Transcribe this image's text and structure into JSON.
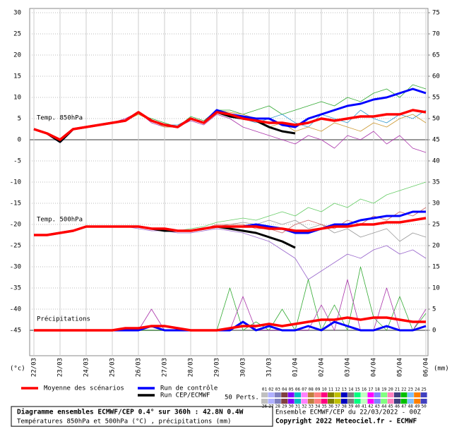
{
  "chart_data": {
    "type": "line",
    "categories": [
      "22/03",
      null,
      "23/03",
      null,
      "24/03",
      null,
      "25/03",
      null,
      "26/03",
      null,
      "27/03",
      null,
      "28/03",
      null,
      "29/03",
      null,
      "30/03",
      null,
      "31/03",
      null,
      "01/04",
      null,
      "02/04",
      null,
      "03/04",
      null,
      "04/04",
      null,
      "05/04",
      null,
      "06/04"
    ],
    "ylim": [
      -51,
      31
    ],
    "yticks": [
      30,
      25,
      20,
      15,
      10,
      5,
      0,
      -5,
      -10,
      -15,
      -20,
      -25,
      -30,
      -35,
      -40,
      -45
    ],
    "y2lim": [
      -6,
      76
    ],
    "y2ticks": [
      75,
      70,
      65,
      60,
      55,
      50,
      45,
      40,
      35,
      30,
      25,
      20,
      15,
      10,
      5,
      0
    ],
    "baselines": [
      0,
      -45
    ],
    "grid": true,
    "y_unit": "(°c)",
    "y2_unit": "(mm)",
    "annotations": [
      "Temp. 850hPa",
      "Temp. 500hPa",
      "Précipitations"
    ],
    "legend": [
      {
        "name": "Moyenne des scénarios",
        "color": "#ff0000"
      },
      {
        "name": "Run de contrôle",
        "color": "#0000ff"
      },
      {
        "name": "Run CEP/ECMWF",
        "color": "#000000"
      }
    ],
    "perts_label": "50 Perts.",
    "members": [
      {
        "label": "01",
        "color": "#c0c0c0"
      },
      {
        "label": "02",
        "color": "#b0b0ff"
      },
      {
        "label": "03",
        "color": "#8080c0"
      },
      {
        "label": "04",
        "color": "#804040"
      },
      {
        "label": "05",
        "color": "#8000ff"
      },
      {
        "label": "06",
        "color": "#00c0c0"
      },
      {
        "label": "07",
        "color": "#ff80ff"
      },
      {
        "label": "08",
        "color": "#c08040"
      },
      {
        "label": "09",
        "color": "#ff8080"
      },
      {
        "label": "10",
        "color": "#ff0080"
      },
      {
        "label": "11",
        "color": "#808000"
      },
      {
        "label": "12",
        "color": "#c0c000"
      },
      {
        "label": "13",
        "color": "#0000c0"
      },
      {
        "label": "14",
        "color": "#808080"
      },
      {
        "label": "15",
        "color": "#00ff80"
      },
      {
        "label": "16",
        "color": "#c0ffc0"
      },
      {
        "label": "17",
        "color": "#ff00ff"
      },
      {
        "label": "18",
        "color": "#8080ff"
      },
      {
        "label": "19",
        "color": "#80ff80"
      },
      {
        "label": "20",
        "color": "#ff80c0"
      },
      {
        "label": "21",
        "color": "#404080"
      },
      {
        "label": "22",
        "color": "#00c000"
      },
      {
        "label": "23",
        "color": "#80c0ff"
      },
      {
        "label": "24",
        "color": "#ff8000"
      },
      {
        "label": "25",
        "color": "#4040c0"
      },
      {
        "label": "26",
        "color": "#c0c0c0"
      },
      {
        "label": "27",
        "color": "#b0b0ff"
      },
      {
        "label": "28",
        "color": "#8080c0"
      },
      {
        "label": "29",
        "color": "#804040"
      },
      {
        "label": "30",
        "color": "#8000ff"
      },
      {
        "label": "31",
        "color": "#00c0c0"
      },
      {
        "label": "32",
        "color": "#ff80ff"
      },
      {
        "label": "33",
        "color": "#c08040"
      },
      {
        "label": "34",
        "color": "#ff8080"
      },
      {
        "label": "35",
        "color": "#ff0080"
      },
      {
        "label": "36",
        "color": "#808000"
      },
      {
        "label": "37",
        "color": "#c0c000"
      },
      {
        "label": "38",
        "color": "#0000c0"
      },
      {
        "label": "39",
        "color": "#808080"
      },
      {
        "label": "40",
        "color": "#00ff80"
      },
      {
        "label": "41",
        "color": "#c0ffc0"
      },
      {
        "label": "42",
        "color": "#ff00ff"
      },
      {
        "label": "43",
        "color": "#8080ff"
      },
      {
        "label": "44",
        "color": "#80ff80"
      },
      {
        "label": "45",
        "color": "#ff80c0"
      },
      {
        "label": "46",
        "color": "#404080"
      },
      {
        "label": "47",
        "color": "#00c000"
      },
      {
        "label": "48",
        "color": "#80c0ff"
      },
      {
        "label": "49",
        "color": "#ff8000"
      },
      {
        "label": "50",
        "color": "#4040c0"
      }
    ],
    "series": [
      {
        "color": "#33aa33",
        "values": [
          2.5,
          1.5,
          0,
          2.5,
          3,
          3.5,
          4,
          4.5,
          6,
          5,
          4,
          3,
          5.5,
          4.5,
          7,
          7,
          6,
          7,
          8,
          6,
          7,
          8,
          9,
          8,
          10,
          9,
          11,
          12,
          10,
          13,
          12
        ]
      },
      {
        "color": "#aa33aa",
        "values": [
          2.5,
          1.5,
          0,
          2.5,
          3,
          3.5,
          4,
          5,
          6.5,
          4,
          3,
          3,
          4.5,
          3.5,
          6,
          5,
          3,
          2,
          1,
          0,
          -1,
          1,
          0,
          -2,
          1,
          0,
          2,
          -1,
          1,
          -2,
          -3
        ]
      },
      {
        "color": "#3399cc",
        "values": [
          2.5,
          1.5,
          0,
          2.5,
          3,
          3.5,
          4,
          4.5,
          6.5,
          4.5,
          3.5,
          3.5,
          5,
          4,
          6.5,
          6,
          5,
          4,
          5,
          6,
          4,
          3,
          6,
          5,
          4,
          7,
          5,
          4,
          6,
          5,
          7
        ]
      },
      {
        "color": "#cc9933",
        "values": [
          2.5,
          1.5,
          0,
          2.5,
          3,
          3.5,
          4,
          4.5,
          6,
          4.5,
          3,
          3,
          5,
          4,
          7,
          6.5,
          6,
          5,
          3,
          4,
          2,
          3,
          2,
          4,
          3,
          2,
          4,
          3,
          5,
          6,
          4
        ]
      },
      {
        "color": "#66cc66",
        "values": [
          -22.5,
          -22.5,
          -22,
          -21.5,
          -20.5,
          -20.5,
          -20.5,
          -20.5,
          -20.5,
          -21,
          -21,
          -21.5,
          -21,
          -20.5,
          -19.5,
          -19,
          -18.5,
          -19,
          -18,
          -17,
          -18,
          -16,
          -17,
          -15,
          -16,
          -14,
          -15,
          -13,
          -12,
          -11,
          -10
        ]
      },
      {
        "color": "#9966cc",
        "values": [
          -22.5,
          -22.5,
          -22,
          -21.5,
          -20.5,
          -20.5,
          -20.5,
          -20.5,
          -21,
          -21.5,
          -21.5,
          -22,
          -22,
          -21.5,
          -21,
          -21.5,
          -22,
          -23,
          -24,
          -26,
          -28,
          -33,
          -31,
          -29,
          -27,
          -28,
          -26,
          -25,
          -27,
          -26,
          -28
        ]
      },
      {
        "color": "#999999",
        "values": [
          -22.5,
          -22.5,
          -22,
          -21.5,
          -20.5,
          -20.5,
          -20.5,
          -20.5,
          -20.5,
          -21,
          -21,
          -21.5,
          -21.5,
          -21,
          -20.5,
          -20,
          -19.5,
          -20,
          -19,
          -20,
          -19,
          -21,
          -20,
          -22,
          -21,
          -23,
          -22,
          -21,
          -24,
          -22,
          -23
        ]
      },
      {
        "color": "#cc6666",
        "values": [
          -22.5,
          -22.5,
          -22,
          -21.5,
          -20.5,
          -20.5,
          -20.5,
          -20.5,
          -20.5,
          -21,
          -21,
          -21.5,
          -21.5,
          -21,
          -20,
          -20,
          -20,
          -21,
          -21,
          -22,
          -20,
          -19,
          -20,
          -21,
          -19,
          -20,
          -18,
          -19,
          -17,
          -18,
          -16
        ]
      },
      {
        "color": "#33aa33",
        "axis": "y2",
        "values": [
          0,
          0,
          0,
          0,
          0,
          0,
          0,
          0,
          0,
          0,
          0,
          0,
          0,
          0,
          0,
          10,
          0,
          2,
          0,
          5,
          0,
          12,
          0,
          6,
          0,
          15,
          3,
          0,
          8,
          0,
          4
        ]
      },
      {
        "color": "#aa33aa",
        "axis": "y2",
        "values": [
          0,
          0,
          0,
          0,
          0,
          0,
          0,
          0,
          0,
          5,
          0,
          0,
          0,
          0,
          0,
          0,
          8,
          0,
          0,
          0,
          0,
          0,
          6,
          0,
          12,
          0,
          0,
          10,
          0,
          0,
          5
        ]
      },
      {
        "color": "#0000ff",
        "values": [
          2.5,
          1.5,
          -0.5,
          2.5,
          3,
          3.5,
          4,
          4.5,
          6.5,
          4.5,
          3.5,
          3,
          5,
          4,
          7,
          6,
          5.5,
          5,
          5,
          3.5,
          3,
          5,
          6,
          7,
          8,
          8.5,
          9.5,
          10,
          11,
          12,
          11
        ]
      },
      {
        "color": "#000000",
        "values": [
          2.5,
          1.5,
          -0.5,
          2.5,
          3,
          3.5,
          4,
          4.5,
          6.5,
          4.5,
          3.5,
          3,
          5,
          4,
          6.5,
          5.5,
          5,
          4.5,
          3,
          2,
          1.5,
          null,
          null,
          null,
          null,
          null,
          null,
          null,
          null,
          null,
          null
        ]
      },
      {
        "color": "#ff0000",
        "values": [
          2.5,
          1.5,
          0,
          2.5,
          3,
          3.5,
          4,
          4.5,
          6.5,
          4.5,
          3.5,
          3,
          5,
          4,
          6.5,
          6,
          5,
          4.5,
          4,
          4,
          3.5,
          4,
          5,
          4.5,
          5,
          5.5,
          5.5,
          6,
          6,
          7,
          6.5
        ]
      },
      {
        "color": "#0000ff",
        "values": [
          -22.5,
          -22.5,
          -22,
          -21.5,
          -20.5,
          -20.5,
          -20.5,
          -20.5,
          -20.5,
          -21,
          -21,
          -21.5,
          -21.5,
          -21,
          -20.5,
          -20.5,
          -20.5,
          -20,
          -20.5,
          -21,
          -22,
          -22,
          -21,
          -20,
          -20,
          -19,
          -18.5,
          -18,
          -18,
          -17,
          -17
        ]
      },
      {
        "color": "#000000",
        "values": [
          -22.5,
          -22.5,
          -22,
          -21.5,
          -20.5,
          -20.5,
          -20.5,
          -20.5,
          -20.5,
          -21,
          -21.5,
          -21.5,
          -21.5,
          -21,
          -20.5,
          -21,
          -21.5,
          -22,
          -23,
          -24,
          -25.5,
          null,
          null,
          null,
          null,
          null,
          null,
          null,
          null,
          null,
          null
        ]
      },
      {
        "color": "#ff0000",
        "values": [
          -22.5,
          -22.5,
          -22,
          -21.5,
          -20.5,
          -20.5,
          -20.5,
          -20.5,
          -20.5,
          -21,
          -21,
          -21.5,
          -21.5,
          -21,
          -20.5,
          -20.5,
          -20.5,
          -20.5,
          -21,
          -21,
          -21.5,
          -21.5,
          -21,
          -20.5,
          -20.5,
          -20,
          -20,
          -19.5,
          -19.5,
          -19,
          -18.5
        ]
      },
      {
        "color": "#0000ff",
        "axis": "y2",
        "values": [
          0,
          0,
          0,
          0,
          0,
          0,
          0,
          0,
          0,
          1,
          0,
          0,
          0,
          0,
          0,
          0,
          2,
          0,
          1,
          0,
          0,
          1,
          0,
          2,
          1,
          0,
          0,
          1,
          0,
          0,
          1
        ]
      },
      {
        "color": "#ff0000",
        "axis": "y2",
        "values": [
          0,
          0,
          0,
          0,
          0,
          0,
          0,
          0.5,
          0.5,
          1,
          1,
          0.5,
          0,
          0,
          0,
          0.5,
          1,
          1,
          1.5,
          1,
          1.5,
          2,
          2.5,
          2.5,
          3,
          2.5,
          3,
          3,
          2.5,
          2,
          2
        ]
      }
    ]
  },
  "footer": {
    "title": "Diagramme ensembles ECMWF/CEP 0.4° sur 360h : 42.8N 0.4W",
    "subtitle": "Températures 850hPa et 500hPa (°C) , précipitations (mm)",
    "run": "Ensemble ECMWF/CEP du 22/03/2022 - 00Z",
    "copyright": "Copyright 2022 Meteociel.fr - ECMWF"
  }
}
